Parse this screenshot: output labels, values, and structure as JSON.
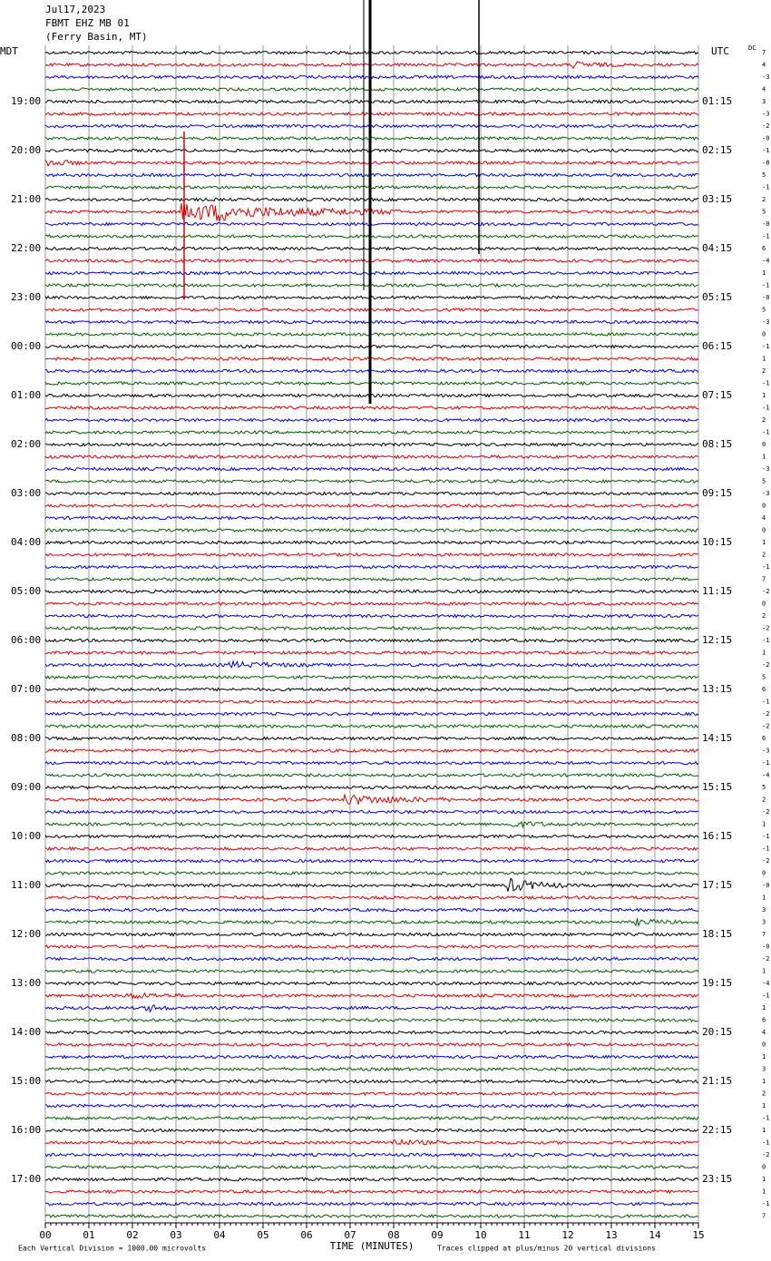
{
  "header": {
    "date": "Jul17,2023",
    "station": "FBMT EHZ MB 01",
    "location": "(Ferry Basin, MT)"
  },
  "left_axis": {
    "title": "MDT",
    "labels": [
      "19:00",
      "20:00",
      "21:00",
      "22:00",
      "23:00",
      "00:00",
      "01:00",
      "02:00",
      "03:00",
      "04:00",
      "05:00",
      "06:00",
      "07:00",
      "08:00",
      "09:00",
      "10:00",
      "11:00",
      "12:00",
      "13:00",
      "14:00",
      "15:00",
      "16:00",
      "17:00"
    ]
  },
  "right_axis": {
    "title": "UTC",
    "labels": [
      "01:15",
      "02:15",
      "03:15",
      "04:15",
      "05:15",
      "06:15",
      "07:15",
      "08:15",
      "09:15",
      "10:15",
      "11:15",
      "12:15",
      "13:15",
      "14:15",
      "15:15",
      "16:15",
      "17:15",
      "18:15",
      "19:15",
      "20:15",
      "21:15",
      "22:15",
      "23:15"
    ],
    "dc_title": "DC",
    "dc_values": [
      "7",
      "4",
      "-3",
      "4",
      "3",
      "-3",
      "-2",
      "-0",
      "-1",
      "-8",
      "5",
      "-1",
      "2",
      "5",
      "-0",
      "-1",
      "6",
      "-4",
      "1",
      "-1",
      "-0",
      "5",
      "-3",
      "0",
      "-1",
      "1",
      "2",
      "-1",
      "1",
      "-1",
      "2",
      "-1",
      "0",
      "1",
      "-3",
      "5",
      "-3",
      "0",
      "4",
      "0",
      "1",
      "2",
      "-1",
      "7",
      "-2",
      "0",
      "2",
      "-2",
      "-1",
      "1",
      "-2",
      "5",
      "6",
      "-1",
      "-2",
      "-2",
      "6",
      "-3",
      "-1",
      "-4",
      "5",
      "2",
      "-2",
      "1",
      "-1",
      "-1",
      "-2",
      "0",
      "-0",
      "1",
      "3",
      "3",
      "7",
      "-0",
      "-2",
      "1",
      "-4",
      "-1",
      "1",
      "6",
      "4",
      "0",
      "1",
      "3",
      "1",
      "2",
      "1",
      "-1",
      "1",
      "-1",
      "-2",
      "0",
      "1",
      "1",
      "-1",
      "7"
    ]
  },
  "x_axis": {
    "title": "TIME (MINUTES)",
    "ticks": [
      "00",
      "01",
      "02",
      "03",
      "04",
      "05",
      "06",
      "07",
      "08",
      "09",
      "10",
      "11",
      "12",
      "13",
      "14",
      "15"
    ]
  },
  "footer": {
    "left": "Each Vertical Division = 1000.00 microvolts",
    "right": "Traces clipped at plus/minus 20 vertical divisions"
  }
}
